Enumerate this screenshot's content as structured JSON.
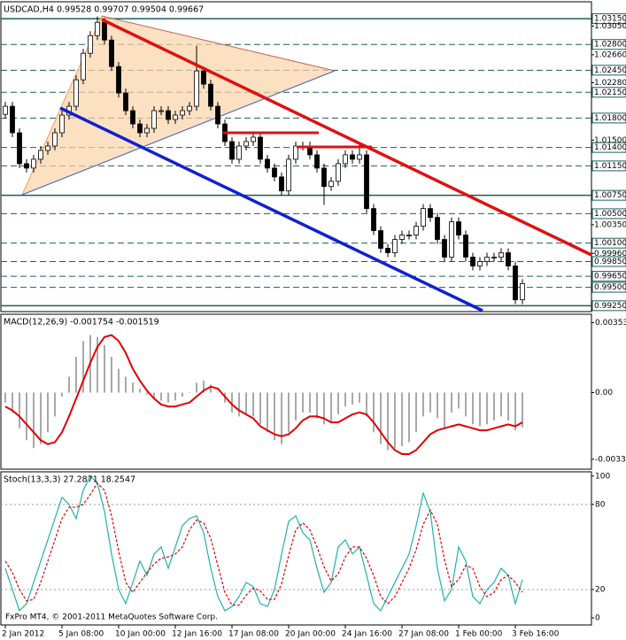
{
  "chart_data": [
    {
      "type": "candlestick",
      "title": "USDCAD,H4  0.99528 0.99707 0.99504 0.99667",
      "categories": [
        "2 Jan 2012",
        null,
        null,
        null,
        null,
        null,
        null,
        null,
        "5 Jan 08:00",
        null,
        null,
        null,
        null,
        null,
        null,
        null,
        "10 Jan 00:00",
        null,
        null,
        null,
        null,
        null,
        null,
        null,
        "12 Jan 16:00",
        null,
        null,
        null,
        null,
        null,
        null,
        null,
        "17 Jan 08:00",
        null,
        null,
        null,
        null,
        null,
        null,
        null,
        "20 Jan 00:00",
        null,
        null,
        null,
        null,
        null,
        null,
        null,
        "24 Jan 16:00",
        null,
        null,
        null,
        null,
        null,
        null,
        null,
        "27 Jan 08:00",
        null,
        null,
        null,
        null,
        null,
        null,
        null,
        "1 Feb 00:00",
        null,
        null,
        null,
        null,
        null,
        null,
        null,
        "3 Feb 16:00",
        null
      ],
      "open": [
        1.0185,
        1.0196,
        1.016,
        1.0118,
        1.0112,
        1.0124,
        1.0136,
        1.0142,
        1.016,
        1.0184,
        1.0196,
        1.0232,
        1.0268,
        1.0292,
        1.031,
        1.0286,
        1.025,
        1.0214,
        1.019,
        1.0172,
        1.016,
        1.0166,
        1.019,
        1.019,
        1.0178,
        1.0184,
        1.019,
        1.0196,
        1.0244,
        1.0226,
        1.0196,
        1.0172,
        1.0148,
        1.0124,
        1.0142,
        1.0148,
        1.0154,
        1.0124,
        1.0112,
        1.01,
        1.0081,
        1.0124,
        1.0142,
        1.0142,
        1.013,
        1.0112,
        1.0087,
        1.0094,
        1.0118,
        1.013,
        1.0124,
        1.013,
        1.0057,
        1.0027,
        1.0003,
        0.9997,
        1.0015,
        1.0021,
        1.0021,
        1.0033,
        1.0057,
        1.0045,
        1.0015,
        0.9991,
        1.0039,
        1.0021,
        0.9991,
        0.9979,
        0.9985,
        0.9991,
        0.9991,
        0.9997,
        0.9979,
        0.9933
      ],
      "high": [
        1.0202,
        1.0202,
        1.0166,
        1.0124,
        1.013,
        1.0142,
        1.0148,
        1.0166,
        1.019,
        1.0202,
        1.0238,
        1.0274,
        1.0298,
        1.0318,
        1.0316,
        1.0292,
        1.0256,
        1.022,
        1.0196,
        1.0178,
        1.0172,
        1.0196,
        1.0196,
        1.0196,
        1.019,
        1.0196,
        1.0202,
        1.0278,
        1.025,
        1.0232,
        1.0202,
        1.0178,
        1.0154,
        1.0148,
        1.0154,
        1.016,
        1.016,
        1.013,
        1.0118,
        1.0106,
        1.013,
        1.0148,
        1.0148,
        1.0148,
        1.0136,
        1.0118,
        1.01,
        1.0124,
        1.0136,
        1.0136,
        1.0144,
        1.0136,
        1.0063,
        1.0033,
        1.0009,
        1.0021,
        1.0027,
        1.0027,
        1.0039,
        1.0063,
        1.0063,
        1.0051,
        1.0021,
        1.0045,
        1.0045,
        1.0027,
        0.9997,
        0.9991,
        0.9997,
        0.9997,
        1.0003,
        1.0003,
        0.9985,
        0.9961
      ],
      "low": [
        1.0179,
        1.0154,
        1.0112,
        1.0106,
        1.0106,
        1.0118,
        1.013,
        1.0136,
        1.0154,
        1.0178,
        1.019,
        1.0226,
        1.0262,
        1.0286,
        1.028,
        1.0244,
        1.0208,
        1.0184,
        1.0166,
        1.0154,
        1.0154,
        1.016,
        1.0184,
        1.0172,
        1.0172,
        1.0178,
        1.0184,
        1.019,
        1.022,
        1.019,
        1.0166,
        1.0142,
        1.0118,
        1.0118,
        1.0136,
        1.0142,
        1.0118,
        1.0106,
        1.0094,
        1.0075,
        1.0075,
        1.0118,
        1.0136,
        1.0124,
        1.0106,
        1.0062,
        1.0081,
        1.0088,
        1.0112,
        1.0118,
        1.0118,
        1.0051,
        1.0021,
        0.9997,
        0.9991,
        0.9991,
        1.0009,
        1.0015,
        1.0015,
        1.0027,
        1.0039,
        1.0009,
        0.9985,
        0.9985,
        1.0015,
        0.9985,
        0.9973,
        0.9973,
        0.9979,
        0.9985,
        0.9985,
        0.9973,
        0.9927,
        0.9927
      ],
      "close": [
        1.0196,
        1.016,
        1.0118,
        1.0112,
        1.0124,
        1.0136,
        1.0142,
        1.016,
        1.0184,
        1.0196,
        1.0232,
        1.0268,
        1.0292,
        1.031,
        1.0286,
        1.025,
        1.0214,
        1.019,
        1.0172,
        1.016,
        1.0166,
        1.019,
        1.019,
        1.0178,
        1.0184,
        1.019,
        1.0196,
        1.0244,
        1.0226,
        1.0196,
        1.0172,
        1.0148,
        1.0124,
        1.0142,
        1.0148,
        1.0154,
        1.0124,
        1.0112,
        1.01,
        1.0081,
        1.0124,
        1.0142,
        1.0142,
        1.013,
        1.0112,
        1.0087,
        1.0094,
        1.0118,
        1.013,
        1.0124,
        1.013,
        1.0057,
        1.0027,
        1.0003,
        0.9997,
        1.0015,
        1.0021,
        1.0021,
        1.0033,
        1.0057,
        1.0045,
        1.0015,
        0.9991,
        1.0039,
        1.0021,
        0.9991,
        0.9979,
        0.9985,
        0.9991,
        0.9991,
        0.9997,
        0.9979,
        0.9933,
        0.9955
      ],
      "ylim": [
        0.9917,
        1.0338
      ],
      "yticks": [
        {
          "value": 1.0315,
          "label": "1.03150"
        },
        {
          "value": 1.0305,
          "label": "1.03050"
        },
        {
          "value": 1.028,
          "label": "1.02800"
        },
        {
          "value": 1.0266,
          "label": "1.02660"
        },
        {
          "value": 1.0245,
          "label": "1.02450"
        },
        {
          "value": 1.0228,
          "label": "1.02280"
        },
        {
          "value": 1.0215,
          "label": "1.02150"
        },
        {
          "value": 1.018,
          "label": "1.01800"
        },
        {
          "value": 1.015,
          "label": "1.01500"
        },
        {
          "value": 1.014,
          "label": "1.01400"
        },
        {
          "value": 1.0115,
          "label": "1.01150"
        },
        {
          "value": 1.0075,
          "label": "1.00750"
        },
        {
          "value": 1.005,
          "label": "1.00500"
        },
        {
          "value": 1.0035,
          "label": "1.00350"
        },
        {
          "value": 1.001,
          "label": "1.00100"
        },
        {
          "value": 0.9996,
          "label": "0.99960"
        },
        {
          "value": 0.9985,
          "label": "0.99850"
        },
        {
          "value": 0.9965,
          "label": "0.99650"
        },
        {
          "value": 0.995,
          "label": "0.99500"
        },
        {
          "value": 0.9925,
          "label": "0.99250"
        }
      ],
      "levels": [
        {
          "value": 1.0315,
          "solid": true
        },
        {
          "value": 1.028,
          "solid": false
        },
        {
          "value": 1.0245,
          "solid": false
        },
        {
          "value": 1.0215,
          "solid": false
        },
        {
          "value": 1.018,
          "solid": false
        },
        {
          "value": 1.014,
          "solid": false
        },
        {
          "value": 1.0115,
          "solid": false
        },
        {
          "value": 1.0075,
          "solid": true
        },
        {
          "value": 1.005,
          "solid": false
        },
        {
          "value": 1.001,
          "solid": false
        },
        {
          "value": 0.9985,
          "solid": false
        },
        {
          "value": 0.9965,
          "solid": false
        },
        {
          "value": 0.995,
          "solid": false
        },
        {
          "value": 0.9925,
          "solid": true
        }
      ],
      "level_color": "#1f5c5c",
      "up_color": "#ffffff",
      "down_color": "#000000"
    },
    {
      "type": "combo",
      "title": "MACD(12,26,9) -0.001754 -0.001519",
      "ylim": [
        -0.00386,
        0.00395
      ],
      "yticks": [
        0.00353,
        {
          "value": 0,
          "label": "0.00"
        },
        -0.00336
      ],
      "series": [
        {
          "type": "bar",
          "color": "#a8a8a8",
          "values": [
            -0.0005,
            -0.001,
            -0.0018,
            -0.0024,
            -0.0028,
            -0.0026,
            -0.002,
            -0.0012,
            -0.0002,
            0.0008,
            0.0018,
            0.0026,
            0.0029,
            0.0028,
            0.0024,
            0.0018,
            0.0012,
            0.0008,
            0.0005,
            0.0002,
            -0.0001,
            -0.0003,
            -0.0004,
            -0.0005,
            -0.0004,
            -0.0002,
            0,
            0.0005,
            0.0006,
            0.0004,
            0,
            -0.0005,
            -0.001,
            -0.0012,
            -0.0011,
            -0.0012,
            -0.0016,
            -0.002,
            -0.0024,
            -0.0026,
            -0.002,
            -0.0014,
            -0.001,
            -0.001,
            -0.0013,
            -0.0016,
            -0.0015,
            -0.0011,
            -0.0007,
            -0.0006,
            -0.0005,
            -0.0012,
            -0.002,
            -0.0026,
            -0.0029,
            -0.0028,
            -0.0027,
            -0.0025,
            -0.002,
            -0.0012,
            -0.001,
            -0.0013,
            -0.0018,
            -0.001,
            -0.0008,
            -0.0012,
            -0.0016,
            -0.0017,
            -0.0016,
            -0.0014,
            -0.0012,
            -0.0014,
            -0.0019,
            -0.00175
          ]
        },
        {
          "type": "line",
          "color": "#e00000",
          "values": [
            -0.0007,
            -0.0009,
            -0.0012,
            -0.0016,
            -0.002,
            -0.0024,
            -0.0026,
            -0.0025,
            -0.002,
            -0.0012,
            -0.0003,
            0.0006,
            0.0015,
            0.0023,
            0.0028,
            0.0029,
            0.0026,
            0.002,
            0.0012,
            0.0006,
            0.0001,
            -0.0003,
            -0.0006,
            -0.0007,
            -0.0007,
            -0.0006,
            -0.0005,
            -0.0002,
            0.0001,
            0.0003,
            0.0002,
            -0.0002,
            -0.0006,
            -0.0009,
            -0.0011,
            -0.0013,
            -0.0017,
            -0.0019,
            -0.0021,
            -0.0022,
            -0.0021,
            -0.0018,
            -0.0014,
            -0.0012,
            -0.0012,
            -0.0013,
            -0.0015,
            -0.0015,
            -0.0013,
            -0.0011,
            -0.001,
            -0.0011,
            -0.0015,
            -0.002,
            -0.0025,
            -0.0029,
            -0.0031,
            -0.0031,
            -0.0029,
            -0.0025,
            -0.0021,
            -0.0019,
            -0.0018,
            -0.0017,
            -0.0016,
            -0.0017,
            -0.0018,
            -0.0019,
            -0.0019,
            -0.0018,
            -0.0017,
            -0.0016,
            -0.0017,
            -0.0015
          ]
        }
      ]
    },
    {
      "type": "line",
      "title": "Stoch(13,3,3) 27.2871 18.2547",
      "ylim": [
        -5,
        103
      ],
      "yticks": [
        100,
        80,
        20,
        0
      ],
      "levels": [
        80,
        20
      ],
      "series": [
        {
          "color": "#20b2aa",
          "dashed": false,
          "values": [
            35,
            20,
            5,
            10,
            25,
            40,
            55,
            70,
            85,
            80,
            70,
            90,
            100,
            95,
            75,
            45,
            20,
            10,
            25,
            40,
            30,
            45,
            50,
            35,
            50,
            65,
            70,
            72,
            60,
            35,
            15,
            5,
            8,
            15,
            25,
            22,
            10,
            8,
            20,
            45,
            68,
            72,
            60,
            55,
            35,
            18,
            25,
            50,
            55,
            45,
            50,
            30,
            10,
            5,
            15,
            25,
            35,
            45,
            65,
            88,
            75,
            35,
            12,
            20,
            50,
            40,
            15,
            10,
            20,
            25,
            35,
            30,
            10,
            27
          ]
        },
        {
          "color": "#e00000",
          "dashed": true,
          "values": [
            40,
            32,
            20,
            12,
            13,
            25,
            40,
            55,
            70,
            78,
            78,
            80,
            87,
            95,
            90,
            72,
            47,
            25,
            18,
            25,
            32,
            38,
            42,
            43,
            45,
            50,
            62,
            69,
            67,
            56,
            37,
            18,
            9,
            9,
            16,
            21,
            19,
            13,
            13,
            24,
            44,
            62,
            67,
            62,
            50,
            36,
            26,
            31,
            43,
            50,
            50,
            42,
            30,
            15,
            10,
            15,
            25,
            35,
            48,
            66,
            76,
            66,
            41,
            22,
            27,
            37,
            35,
            22,
            15,
            18,
            27,
            30,
            25,
            18
          ]
        }
      ]
    }
  ],
  "footer": "FxPro MT4, © 2001-2011 MetaQuotes Software Corp."
}
